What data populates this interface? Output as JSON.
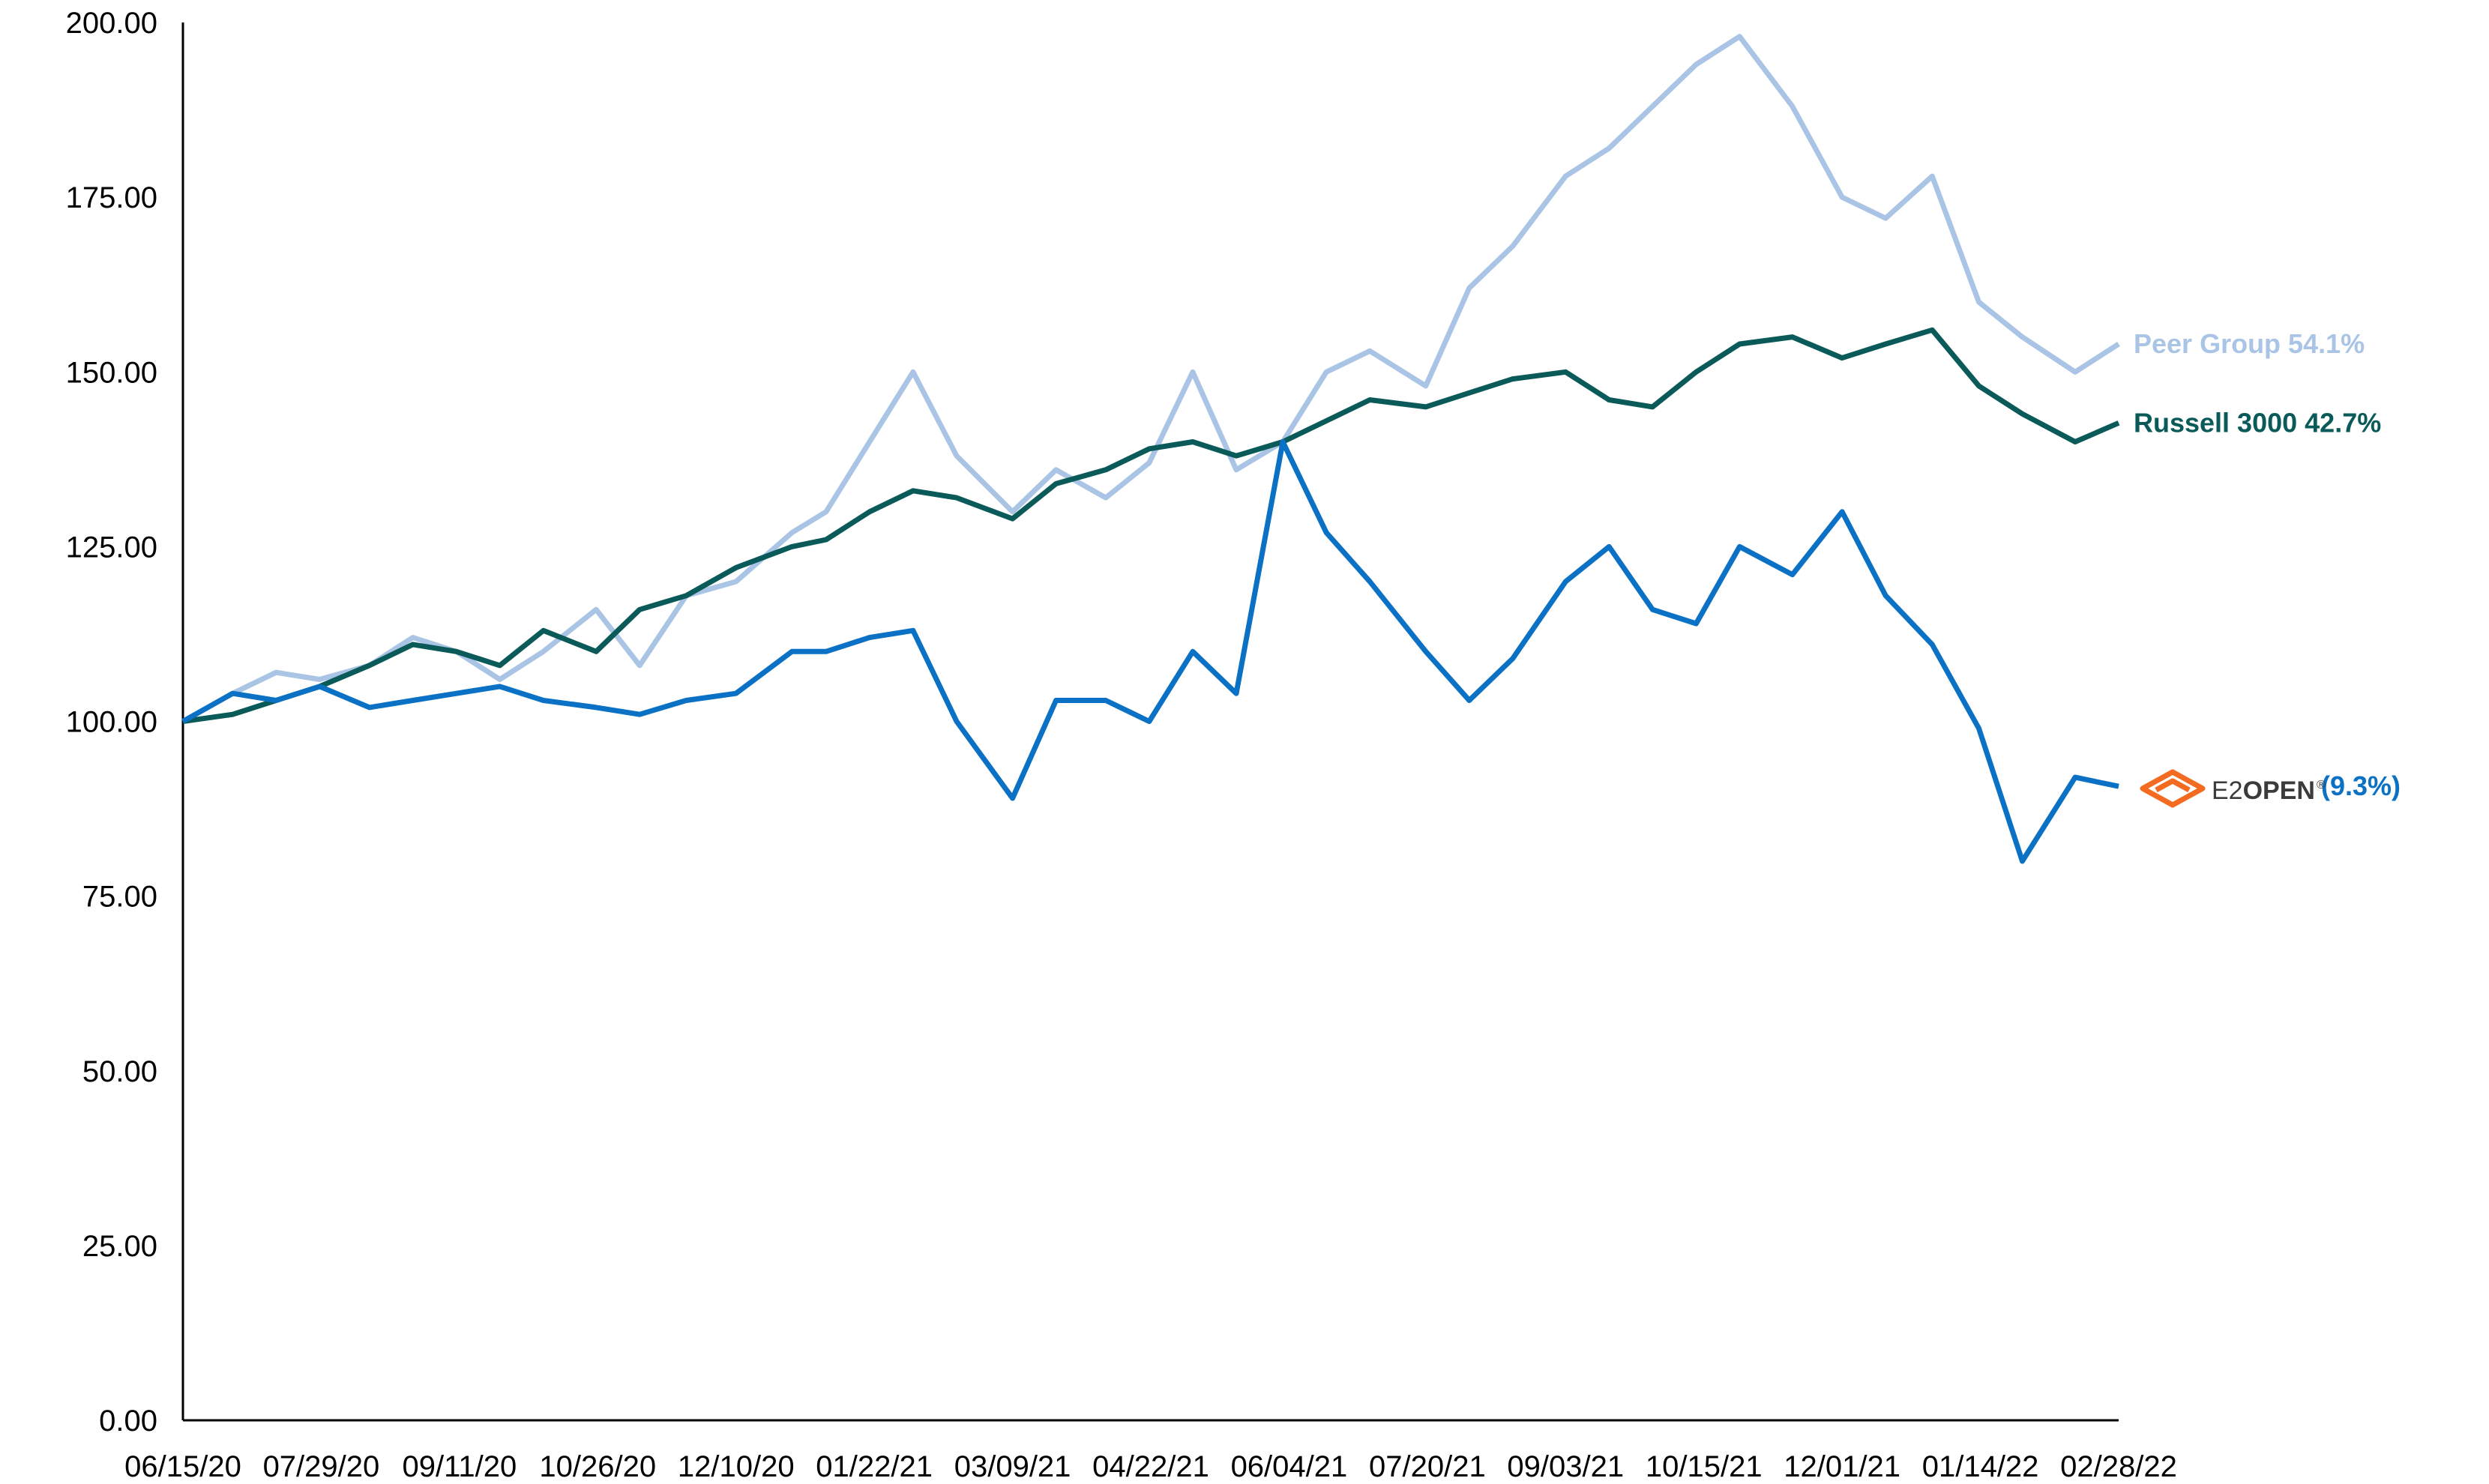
{
  "chart_data": {
    "type": "line",
    "title": "",
    "xlabel": "",
    "ylabel": "",
    "ylim": [
      0,
      200
    ],
    "yticks": [
      "0.00",
      "25.00",
      "50.00",
      "75.00",
      "100.00",
      "125.00",
      "150.00",
      "175.00",
      "200.00"
    ],
    "xlim": [
      "2020-06-15",
      "2022-02-28"
    ],
    "xticks": [
      "06/15/20",
      "07/29/20",
      "09/11/20",
      "10/26/20",
      "12/10/20",
      "01/22/21",
      "03/09/21",
      "04/22/21",
      "06/04/21",
      "07/20/21",
      "09/03/21",
      "10/15/21",
      "12/01/21",
      "01/14/22",
      "02/28/22"
    ],
    "grid": false,
    "legend": "right end labels",
    "x": [
      "2020-06-15",
      "2020-07-01",
      "2020-07-15",
      "2020-07-29",
      "2020-08-14",
      "2020-08-28",
      "2020-09-11",
      "2020-09-25",
      "2020-10-09",
      "2020-10-26",
      "2020-11-09",
      "2020-11-24",
      "2020-12-10",
      "2020-12-28",
      "2021-01-08",
      "2021-01-22",
      "2021-02-05",
      "2021-02-19",
      "2021-03-09",
      "2021-03-23",
      "2021-04-08",
      "2021-04-22",
      "2021-05-06",
      "2021-05-20",
      "2021-06-04",
      "2021-06-18",
      "2021-07-02",
      "2021-07-20",
      "2021-08-03",
      "2021-08-17",
      "2021-09-03",
      "2021-09-17",
      "2021-10-01",
      "2021-10-15",
      "2021-10-29",
      "2021-11-15",
      "2021-12-01",
      "2021-12-15",
      "2021-12-30",
      "2022-01-14",
      "2022-01-28",
      "2022-02-14",
      "2022-02-28"
    ],
    "series": [
      {
        "name": "Peer Group",
        "end_label": "Peer Group 54.1%",
        "color": "#a9c4e4",
        "values": [
          100,
          104,
          107,
          106,
          108,
          112,
          110,
          106,
          110,
          116,
          108,
          118,
          120,
          127,
          130,
          140,
          150,
          138,
          130,
          136,
          132,
          137,
          150,
          136,
          140,
          150,
          153,
          148,
          162,
          168,
          178,
          182,
          188,
          194,
          198,
          188,
          175,
          172,
          178,
          160,
          155,
          150,
          154
        ]
      },
      {
        "name": "Russell 3000",
        "end_label": "Russell 3000 42.7%",
        "color": "#0b5a5a",
        "values": [
          100,
          101,
          103,
          105,
          108,
          111,
          110,
          108,
          113,
          110,
          116,
          118,
          122,
          125,
          126,
          130,
          133,
          132,
          129,
          134,
          136,
          139,
          140,
          138,
          140,
          143,
          146,
          145,
          147,
          149,
          150,
          146,
          145,
          150,
          154,
          155,
          152,
          154,
          156,
          148,
          144,
          140,
          142.7
        ]
      },
      {
        "name": "E2open",
        "end_label": "(9.3%)",
        "color": "#0a71c4",
        "values": [
          100,
          104,
          103,
          105,
          102,
          103,
          104,
          105,
          103,
          102,
          101,
          103,
          104,
          110,
          110,
          112,
          113,
          100,
          89,
          103,
          103,
          100,
          110,
          104,
          140,
          127,
          120,
          110,
          103,
          109,
          120,
          125,
          116,
          114,
          125,
          121,
          130,
          118,
          111,
          99,
          80,
          92,
          90.7
        ]
      }
    ],
    "logo": {
      "text_light": "E2",
      "text_bold": "OPEN",
      "mark": "®",
      "icon_name": "e2open-chevron-logo-icon",
      "icon_color": "#f26b21"
    }
  }
}
